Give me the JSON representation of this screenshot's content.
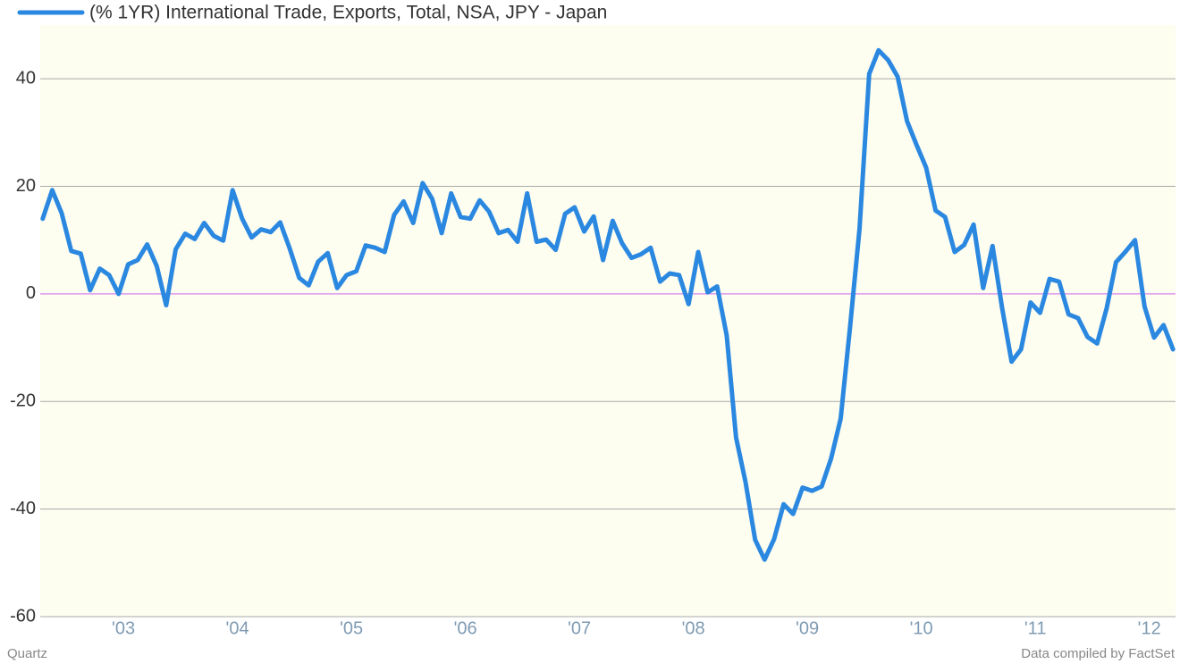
{
  "chart_data": {
    "type": "line",
    "x": [
      2002.792,
      2002.875,
      2002.958,
      2003.042,
      2003.125,
      2003.208,
      2003.292,
      2003.375,
      2003.458,
      2003.542,
      2003.625,
      2003.708,
      2003.792,
      2003.875,
      2003.958,
      2004.042,
      2004.125,
      2004.208,
      2004.292,
      2004.375,
      2004.458,
      2004.542,
      2004.625,
      2004.708,
      2004.792,
      2004.875,
      2004.958,
      2005.042,
      2005.125,
      2005.208,
      2005.292,
      2005.375,
      2005.458,
      2005.542,
      2005.625,
      2005.708,
      2005.792,
      2005.875,
      2005.958,
      2006.042,
      2006.125,
      2006.208,
      2006.292,
      2006.375,
      2006.458,
      2006.542,
      2006.625,
      2006.708,
      2006.792,
      2006.875,
      2006.958,
      2007.042,
      2007.125,
      2007.208,
      2007.292,
      2007.375,
      2007.458,
      2007.542,
      2007.625,
      2007.708,
      2007.792,
      2007.875,
      2007.958,
      2008.042,
      2008.125,
      2008.208,
      2008.292,
      2008.375,
      2008.458,
      2008.542,
      2008.625,
      2008.708,
      2008.792,
      2008.875,
      2008.958,
      2009.042,
      2009.125,
      2009.208,
      2009.292,
      2009.375,
      2009.458,
      2009.542,
      2009.625,
      2009.708,
      2009.792,
      2009.875,
      2009.958,
      2010.042,
      2010.125,
      2010.208,
      2010.292,
      2010.375,
      2010.458,
      2010.542,
      2010.625,
      2010.708,
      2010.792,
      2010.875,
      2010.958,
      2011.042,
      2011.125,
      2011.208,
      2011.292,
      2011.375,
      2011.458,
      2011.542,
      2011.625,
      2011.708,
      2011.792,
      2011.875,
      2011.958,
      2012.042,
      2012.125,
      2012.208,
      2012.292,
      2012.375,
      2012.458,
      2012.542,
      2012.625,
      2012.708
    ],
    "series": [
      {
        "name": "(% 1YR) International Trade, Exports, Total, NSA, JPY - Japan",
        "color": "#2b88e0",
        "values": [
          14,
          19.3,
          15,
          8,
          7.5,
          0.7,
          4.7,
          3.5,
          0,
          5.5,
          6.3,
          9.2,
          5.2,
          -2.1,
          8.3,
          11.2,
          10.2,
          13.2,
          10.8,
          9.9,
          19.3,
          14,
          10.5,
          12,
          11.5,
          13.3,
          8.5,
          3,
          1.6,
          6,
          7.6,
          1.1,
          3.5,
          4.2,
          9,
          8.6,
          7.8,
          14.7,
          17.2,
          13.2,
          20.6,
          17.7,
          11.3,
          18.7,
          14.3,
          14,
          17.4,
          15.3,
          11.3,
          11.9,
          9.7,
          18.7,
          9.7,
          10.1,
          8.2,
          14.9,
          16.1,
          11.6,
          14.4,
          6.3,
          13.6,
          9.4,
          6.7,
          7.4,
          8.6,
          2.3,
          3.8,
          3.5,
          -1.9,
          7.8,
          0.3,
          1.4,
          -7.7,
          -26.7,
          -35,
          -45.7,
          -49.4,
          -45.6,
          -39.1,
          -40.9,
          -36,
          -36.6,
          -35.8,
          -30.6,
          -23.2,
          -6,
          12.1,
          40.9,
          45.3,
          43.5,
          40.4,
          32.1,
          27.7,
          23.5,
          15.5,
          14.3,
          7.8,
          9.1,
          12.9,
          1.1,
          8.9,
          -2.5,
          -12.6,
          -10.3,
          -1.6,
          -3.5,
          2.8,
          2.3,
          -3.8,
          -4.5,
          -8,
          -9.2,
          -2.7,
          5.9,
          7.9,
          10,
          -2.3,
          -8.1,
          -5.8,
          -10.3
        ]
      }
    ],
    "xlim": [
      2002.77,
      2012.73
    ],
    "xticks": [
      {
        "value": 2003.5,
        "label": "'03"
      },
      {
        "value": 2004.5,
        "label": "'04"
      },
      {
        "value": 2005.5,
        "label": "'05"
      },
      {
        "value": 2006.5,
        "label": "'06"
      },
      {
        "value": 2007.5,
        "label": "'07"
      },
      {
        "value": 2008.5,
        "label": "'08"
      },
      {
        "value": 2009.5,
        "label": "'09"
      },
      {
        "value": 2010.5,
        "label": "'10"
      },
      {
        "value": 2011.5,
        "label": "'11"
      },
      {
        "value": 2012.5,
        "label": "'12"
      }
    ],
    "ylim": [
      -60,
      50
    ],
    "yticks": [
      -60,
      -40,
      -20,
      0,
      20,
      40
    ],
    "grid": true,
    "zero_line_color": "#cc66ee",
    "legend": "top-left",
    "source_left": "Quartz",
    "source_right": "Data compiled by FactSet"
  }
}
